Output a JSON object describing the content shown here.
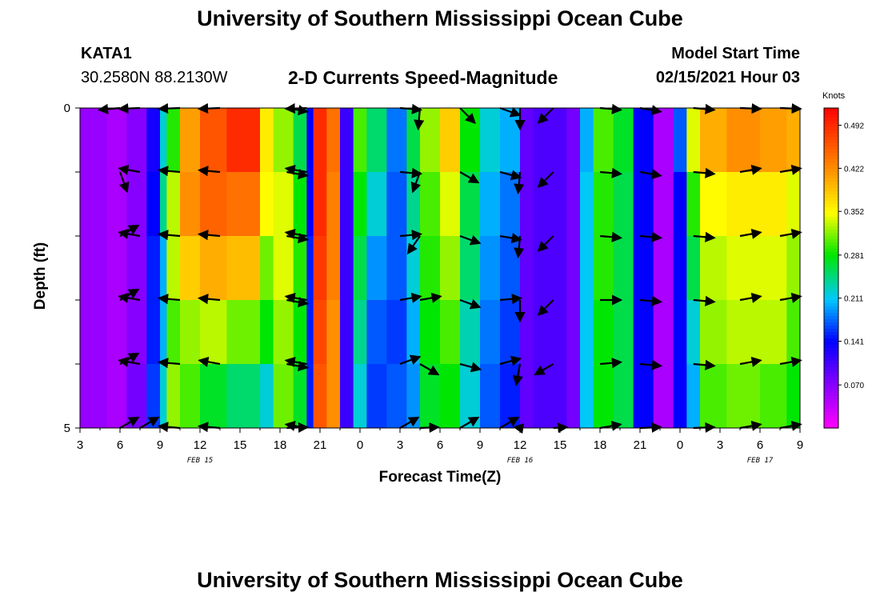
{
  "header": {
    "title_top": "University of Southern Mississippi Ocean Cube",
    "title_bottom": "University of Southern Mississippi Ocean Cube",
    "station": "KATA1",
    "coords": "30.2580N 88.2130W",
    "subtitle": "2-D Currents Speed-Magnitude",
    "model_label": "Model Start Time",
    "model_time": "02/15/2021 Hour 03"
  },
  "chart_data": {
    "type": "heatmap",
    "title": "2-D Currents Speed-Magnitude",
    "xlabel": "Forecast Time(Z)",
    "ylabel": "Depth (ft)",
    "ylim": [
      0,
      5
    ],
    "xlim": [
      3,
      57
    ],
    "x_tick_values": [
      3,
      6,
      9,
      12,
      15,
      18,
      21,
      24,
      27,
      30,
      33,
      36,
      39,
      42,
      45,
      48,
      51,
      54,
      57
    ],
    "x_tick_labels": [
      "3",
      "6",
      "9",
      "12",
      "15",
      "18",
      "21",
      "0",
      "3",
      "6",
      "9",
      "12",
      "15",
      "18",
      "21",
      "0",
      "3",
      "6",
      "9"
    ],
    "y_tick_labels": [
      "0",
      "5"
    ],
    "date_labels": [
      {
        "x": 12,
        "text": "FEB 15"
      },
      {
        "x": 36,
        "text": "FEB 16"
      },
      {
        "x": 54,
        "text": "FEB 17"
      }
    ],
    "colorbar": {
      "unit": "Knots",
      "min": 0.0,
      "max": 0.52,
      "ticks": [
        "0.492",
        "0.422",
        "0.352",
        "0.281",
        "0.211",
        "0.141",
        "0.070"
      ],
      "tick_values": [
        0.492,
        0.422,
        0.352,
        0.281,
        0.211,
        0.141,
        0.07
      ]
    },
    "speed_grid": {
      "depth_levels": 5,
      "columns": [
        {
          "x0": 3,
          "x1": 5,
          "v": [
            0.06,
            0.06,
            0.06,
            0.06,
            0.06
          ]
        },
        {
          "x0": 5,
          "x1": 6.5,
          "v": [
            0.05,
            0.05,
            0.05,
            0.05,
            0.05
          ]
        },
        {
          "x0": 6.5,
          "x1": 8,
          "v": [
            0.07,
            0.07,
            0.07,
            0.07,
            0.08
          ]
        },
        {
          "x0": 8,
          "x1": 9,
          "v": [
            0.13,
            0.14,
            0.15,
            0.15,
            0.16
          ]
        },
        {
          "x0": 9,
          "x1": 9.5,
          "v": [
            0.22,
            0.24,
            0.2,
            0.2,
            0.22
          ]
        },
        {
          "x0": 9.5,
          "x1": 10.5,
          "v": [
            0.29,
            0.33,
            0.33,
            0.3,
            0.32
          ]
        },
        {
          "x0": 10.5,
          "x1": 12,
          "v": [
            0.41,
            0.42,
            0.38,
            0.32,
            0.3
          ]
        },
        {
          "x0": 12,
          "x1": 14,
          "v": [
            0.46,
            0.45,
            0.4,
            0.33,
            0.27
          ]
        },
        {
          "x0": 14,
          "x1": 16.5,
          "v": [
            0.49,
            0.44,
            0.39,
            0.31,
            0.25
          ]
        },
        {
          "x0": 16.5,
          "x1": 17.5,
          "v": [
            0.36,
            0.35,
            0.31,
            0.28,
            0.22
          ]
        },
        {
          "x0": 17.5,
          "x1": 19,
          "v": [
            0.32,
            0.34,
            0.34,
            0.32,
            0.31
          ]
        },
        {
          "x0": 19,
          "x1": 20,
          "v": [
            0.26,
            0.28,
            0.29,
            0.28,
            0.27
          ]
        },
        {
          "x0": 20,
          "x1": 20.5,
          "v": [
            0.14,
            0.14,
            0.15,
            0.15,
            0.15
          ]
        },
        {
          "x0": 20.5,
          "x1": 21.5,
          "v": [
            0.49,
            0.49,
            0.48,
            0.47,
            0.46
          ]
        },
        {
          "x0": 21.5,
          "x1": 22.5,
          "v": [
            0.44,
            0.43,
            0.43,
            0.42,
            0.42
          ]
        },
        {
          "x0": 22.5,
          "x1": 23.5,
          "v": [
            0.11,
            0.11,
            0.11,
            0.11,
            0.11
          ]
        },
        {
          "x0": 23.5,
          "x1": 24.5,
          "v": [
            0.3,
            0.28,
            0.26,
            0.24,
            0.22
          ]
        },
        {
          "x0": 24.5,
          "x1": 26,
          "v": [
            0.25,
            0.22,
            0.19,
            0.17,
            0.16
          ]
        },
        {
          "x0": 26,
          "x1": 27.5,
          "v": [
            0.18,
            0.17,
            0.17,
            0.16,
            0.17
          ]
        },
        {
          "x0": 27.5,
          "x1": 28.5,
          "v": [
            0.26,
            0.24,
            0.22,
            0.2,
            0.19
          ]
        },
        {
          "x0": 28.5,
          "x1": 30,
          "v": [
            0.32,
            0.3,
            0.29,
            0.28,
            0.27
          ]
        },
        {
          "x0": 30,
          "x1": 31.5,
          "v": [
            0.38,
            0.34,
            0.32,
            0.3,
            0.28
          ]
        },
        {
          "x0": 31.5,
          "x1": 33,
          "v": [
            0.28,
            0.26,
            0.25,
            0.23,
            0.22
          ]
        },
        {
          "x0": 33,
          "x1": 34.5,
          "v": [
            0.22,
            0.2,
            0.19,
            0.18,
            0.17
          ]
        },
        {
          "x0": 34.5,
          "x1": 36,
          "v": [
            0.2,
            0.18,
            0.17,
            0.16,
            0.15
          ]
        },
        {
          "x0": 36,
          "x1": 37,
          "v": [
            0.09,
            0.09,
            0.09,
            0.09,
            0.09
          ]
        },
        {
          "x0": 37,
          "x1": 39.5,
          "v": [
            0.1,
            0.1,
            0.1,
            0.1,
            0.1
          ]
        },
        {
          "x0": 39.5,
          "x1": 40.5,
          "v": [
            0.08,
            0.08,
            0.08,
            0.08,
            0.08
          ]
        },
        {
          "x0": 40.5,
          "x1": 41.5,
          "v": [
            0.2,
            0.21,
            0.21,
            0.21,
            0.21
          ]
        },
        {
          "x0": 41.5,
          "x1": 43,
          "v": [
            0.3,
            0.29,
            0.29,
            0.28,
            0.28
          ]
        },
        {
          "x0": 43,
          "x1": 44.5,
          "v": [
            0.27,
            0.26,
            0.26,
            0.26,
            0.26
          ]
        },
        {
          "x0": 44.5,
          "x1": 46,
          "v": [
            0.14,
            0.14,
            0.14,
            0.14,
            0.14
          ]
        },
        {
          "x0": 46,
          "x1": 47.5,
          "v": [
            0.05,
            0.05,
            0.05,
            0.05,
            0.05
          ]
        },
        {
          "x0": 47.5,
          "x1": 48.5,
          "v": [
            0.17,
            0.14,
            0.14,
            0.14,
            0.14
          ]
        },
        {
          "x0": 48.5,
          "x1": 49.5,
          "v": [
            0.34,
            0.29,
            0.26,
            0.22,
            0.2
          ]
        },
        {
          "x0": 49.5,
          "x1": 51.5,
          "v": [
            0.4,
            0.35,
            0.33,
            0.32,
            0.3
          ]
        },
        {
          "x0": 51.5,
          "x1": 54,
          "v": [
            0.42,
            0.36,
            0.34,
            0.33,
            0.31
          ]
        },
        {
          "x0": 54,
          "x1": 56,
          "v": [
            0.41,
            0.36,
            0.34,
            0.33,
            0.3
          ]
        },
        {
          "x0": 56,
          "x1": 57,
          "v": [
            0.4,
            0.34,
            0.32,
            0.3,
            0.28
          ]
        }
      ]
    },
    "vectors": {
      "depth_levels": [
        0,
        1,
        2,
        3,
        4,
        5
      ],
      "columns": [
        {
          "x": 6,
          "dirs": [
            265,
            160,
            60,
            60,
            60,
            60
          ]
        },
        {
          "x": 7.5,
          "dirs": [
            280,
            280,
            280,
            280,
            280,
            60
          ]
        },
        {
          "x": 10.5,
          "dirs": [
            275,
            275,
            275,
            275,
            275,
            275
          ]
        },
        {
          "x": 13.5,
          "dirs": [
            275,
            275,
            275,
            275,
            280,
            275
          ]
        },
        {
          "x": 18.5,
          "dirs": [
            100,
            100,
            100,
            100,
            100,
            100
          ]
        },
        {
          "x": 20,
          "dirs": [
            280,
            280,
            280,
            280,
            280,
            280
          ]
        },
        {
          "x": 27,
          "dirs": [
            95,
            95,
            85,
            80,
            70,
            60
          ]
        },
        {
          "x": 28.5,
          "dirs": [
            185,
            200,
            215,
            80,
            120,
            120
          ]
        },
        {
          "x": 31.5,
          "dirs": [
            135,
            120,
            110,
            110,
            105,
            60
          ]
        },
        {
          "x": 34.5,
          "dirs": [
            110,
            105,
            100,
            85,
            75,
            60
          ]
        },
        {
          "x": 36,
          "dirs": [
            180,
            185,
            185,
            180,
            190,
            195
          ]
        },
        {
          "x": 38.5,
          "dirs": [
            225,
            225,
            225,
            225,
            240,
            140
          ]
        },
        {
          "x": 42,
          "dirs": [
            95,
            95,
            95,
            90,
            85,
            80
          ]
        },
        {
          "x": 45,
          "dirs": [
            100,
            100,
            95,
            95,
            95,
            100
          ]
        },
        {
          "x": 49,
          "dirs": [
            95,
            95,
            95,
            95,
            95,
            95
          ]
        },
        {
          "x": 52.5,
          "dirs": [
            80,
            80,
            80,
            80,
            80,
            80
          ]
        },
        {
          "x": 55.5,
          "dirs": [
            80,
            80,
            80,
            80,
            80,
            80
          ]
        }
      ]
    }
  },
  "colors": {
    "background": "#ffffff",
    "axis": "#000000",
    "arrow": "#000000"
  }
}
